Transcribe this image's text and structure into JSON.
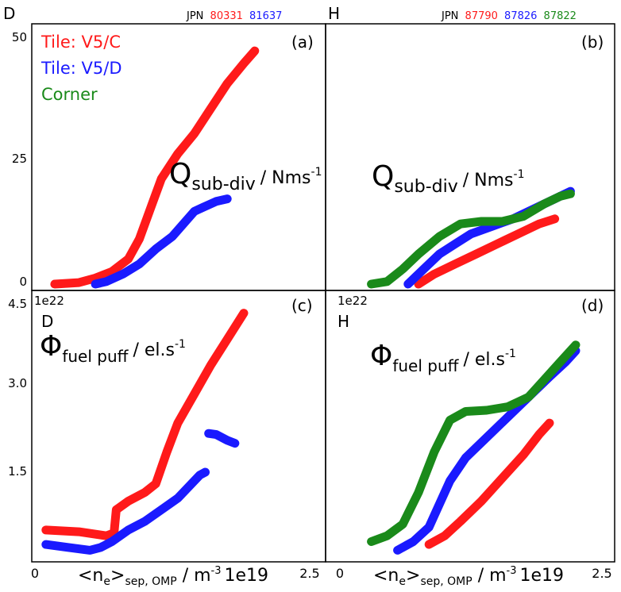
{
  "colors": {
    "red": "#ff1a1a",
    "blue": "#1a1aff",
    "green": "#1a8a1a",
    "frame": "#000000"
  },
  "top_labels": {
    "left": {
      "species": "D",
      "jpn": "JPN",
      "shots": [
        "80331",
        "81637"
      ]
    },
    "right": {
      "species": "H",
      "jpn": "JPN",
      "shots": [
        "87790",
        "87826",
        "87822"
      ]
    }
  },
  "legend": [
    "Tile: V5/C",
    "Tile: V5/D",
    "Corner"
  ],
  "panel_letters": [
    "(a)",
    "(b)",
    "(c)",
    "(d)"
  ],
  "quantity_labels": {
    "q_main": "Q",
    "q_sub": "sub-div",
    "q_unit": "/ Nms",
    "q_sup": "-1",
    "phi_main": "Φ",
    "phi_sub": "fuel puff",
    "phi_unit": "/ el.s",
    "phi_sup": "-1"
  },
  "bottom_species": {
    "c": "D",
    "d": "H"
  },
  "exponents": {
    "phi": "1e22",
    "x": "1e19"
  },
  "xaxis_label": {
    "main": "<n",
    "sub1": "e",
    "mid": ">",
    "sub2": "sep, OMP",
    "unit": " / m",
    "sup": "-3"
  },
  "chart_data": [
    {
      "type": "line",
      "panel": "a",
      "xlim": [
        0,
        2.5
      ],
      "ylim": [
        0,
        50
      ],
      "yticks": [
        "0",
        "25",
        "50"
      ],
      "series": [
        {
          "name": "Tile: V5/C",
          "color": "red",
          "points": [
            [
              0.18,
              0
            ],
            [
              0.4,
              0.3
            ],
            [
              0.55,
              1.2
            ],
            [
              0.7,
              2.5
            ],
            [
              0.85,
              5
            ],
            [
              0.95,
              9
            ],
            [
              1.05,
              15
            ],
            [
              1.15,
              21
            ],
            [
              1.3,
              26
            ],
            [
              1.45,
              30
            ],
            [
              1.6,
              35
            ],
            [
              1.75,
              40
            ],
            [
              1.9,
              44
            ],
            [
              2.0,
              46.5
            ]
          ]
        },
        {
          "name": "Tile: V5/D",
          "color": "blue",
          "points": [
            [
              0.55,
              0
            ],
            [
              0.65,
              0.5
            ],
            [
              0.8,
              2
            ],
            [
              0.95,
              4
            ],
            [
              1.1,
              7
            ],
            [
              1.25,
              9.5
            ],
            [
              1.35,
              12
            ],
            [
              1.45,
              14.5
            ],
            [
              1.55,
              15.5
            ],
            [
              1.65,
              16.5
            ],
            [
              1.75,
              17
            ]
          ]
        }
      ]
    },
    {
      "type": "line",
      "panel": "b",
      "xlim": [
        0,
        2.5
      ],
      "ylim": [
        0,
        50
      ],
      "series": [
        {
          "name": "87790",
          "color": "red",
          "points": [
            [
              0.75,
              0
            ],
            [
              0.9,
              2
            ],
            [
              1.1,
              4
            ],
            [
              1.3,
              6
            ],
            [
              1.5,
              8
            ],
            [
              1.7,
              10
            ],
            [
              1.9,
              12
            ],
            [
              2.05,
              13
            ]
          ]
        },
        {
          "name": "87826",
          "color": "blue",
          "points": [
            [
              0.65,
              0
            ],
            [
              0.8,
              3
            ],
            [
              0.95,
              6
            ],
            [
              1.1,
              8
            ],
            [
              1.25,
              10
            ],
            [
              1.45,
              11.5
            ],
            [
              1.65,
              13
            ],
            [
              1.85,
              15
            ],
            [
              2.05,
              17
            ],
            [
              2.2,
              18.5
            ]
          ]
        },
        {
          "name": "87822",
          "color": "green",
          "points": [
            [
              0.3,
              0
            ],
            [
              0.45,
              0.5
            ],
            [
              0.6,
              3
            ],
            [
              0.75,
              6
            ],
            [
              0.95,
              9.5
            ],
            [
              1.15,
              12
            ],
            [
              1.35,
              12.5
            ],
            [
              1.55,
              12.5
            ],
            [
              1.75,
              13.5
            ],
            [
              1.95,
              16
            ],
            [
              2.1,
              17.5
            ],
            [
              2.2,
              18
            ]
          ]
        }
      ]
    },
    {
      "type": "line",
      "panel": "c",
      "xlim": [
        0,
        2.5
      ],
      "ylim": [
        0,
        4.5
      ],
      "yticks": [
        "1.5",
        "3.0",
        "4.5"
      ],
      "series": [
        {
          "name": "Tile: V5/C",
          "color": "red",
          "points": [
            [
              0.1,
              0.55
            ],
            [
              0.4,
              0.52
            ],
            [
              0.65,
              0.45
            ],
            [
              0.72,
              0.5
            ],
            [
              0.74,
              0.9
            ],
            [
              0.85,
              1.05
            ],
            [
              1.0,
              1.2
            ],
            [
              1.1,
              1.35
            ],
            [
              1.2,
              1.9
            ],
            [
              1.3,
              2.4
            ],
            [
              1.45,
              2.9
            ],
            [
              1.6,
              3.4
            ],
            [
              1.75,
              3.85
            ],
            [
              1.9,
              4.3
            ]
          ]
        },
        {
          "name": "Tile: V5/D",
          "color": "blue",
          "points": [
            [
              0.1,
              0.3
            ],
            [
              0.3,
              0.25
            ],
            [
              0.5,
              0.2
            ],
            [
              0.6,
              0.25
            ],
            [
              0.7,
              0.35
            ],
            [
              0.85,
              0.55
            ],
            [
              1.0,
              0.7
            ],
            [
              1.15,
              0.9
            ],
            [
              1.3,
              1.1
            ],
            [
              1.4,
              1.3
            ],
            [
              1.5,
              1.5
            ],
            [
              1.55,
              1.55
            ]
          ]
        },
        {
          "name": "Tile: V5/D",
          "color": "blue",
          "points": [
            [
              1.58,
              2.22
            ],
            [
              1.65,
              2.2
            ],
            [
              1.75,
              2.1
            ],
            [
              1.82,
              2.05
            ]
          ]
        }
      ]
    },
    {
      "type": "line",
      "panel": "d",
      "xlim": [
        0,
        2.5
      ],
      "ylim": [
        0,
        4.5
      ],
      "series": [
        {
          "name": "87790",
          "color": "red",
          "points": [
            [
              0.85,
              0.3
            ],
            [
              1.0,
              0.45
            ],
            [
              1.15,
              0.7
            ],
            [
              1.35,
              1.05
            ],
            [
              1.55,
              1.45
            ],
            [
              1.75,
              1.85
            ],
            [
              1.9,
              2.2
            ],
            [
              2.0,
              2.4
            ]
          ]
        },
        {
          "name": "87826",
          "color": "blue",
          "points": [
            [
              0.55,
              0.2
            ],
            [
              0.7,
              0.35
            ],
            [
              0.85,
              0.6
            ],
            [
              0.95,
              1.0
            ],
            [
              1.05,
              1.4
            ],
            [
              1.2,
              1.8
            ],
            [
              1.4,
              2.15
            ],
            [
              1.6,
              2.5
            ],
            [
              1.8,
              2.85
            ],
            [
              2.0,
              3.2
            ],
            [
              2.15,
              3.45
            ],
            [
              2.25,
              3.65
            ]
          ]
        },
        {
          "name": "87822",
          "color": "green",
          "points": [
            [
              0.3,
              0.35
            ],
            [
              0.45,
              0.45
            ],
            [
              0.6,
              0.65
            ],
            [
              0.75,
              1.2
            ],
            [
              0.9,
              1.9
            ],
            [
              1.05,
              2.45
            ],
            [
              1.2,
              2.6
            ],
            [
              1.4,
              2.62
            ],
            [
              1.6,
              2.68
            ],
            [
              1.8,
              2.85
            ],
            [
              1.95,
              3.15
            ],
            [
              2.1,
              3.45
            ],
            [
              2.25,
              3.75
            ]
          ]
        }
      ]
    }
  ],
  "xticks": {
    "left": [
      "0",
      "2.5"
    ],
    "right": [
      "0",
      "2.5"
    ]
  }
}
